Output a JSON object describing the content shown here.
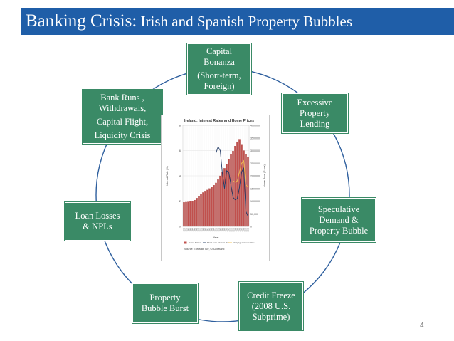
{
  "slide": {
    "title_main": "Banking Crisis:",
    "title_sub": " Irish and Spanish Property Bubbles",
    "page_number": "4"
  },
  "cycle": {
    "nodes": [
      {
        "id": "capital-bonanza",
        "lines": [
          "Capital",
          "Bonanza",
          "(Short-term,",
          "Foreign)"
        ]
      },
      {
        "id": "excessive-lending",
        "lines": [
          "Excessive",
          "Property",
          "Lending"
        ]
      },
      {
        "id": "speculative-demand",
        "lines": [
          "Speculative",
          "Demand &",
          "Property Bubble"
        ]
      },
      {
        "id": "credit-freeze",
        "lines": [
          "Credit Freeze",
          "(2008 U.S.",
          "Subprime)"
        ]
      },
      {
        "id": "bubble-burst",
        "lines": [
          "Property",
          "Bubble Burst"
        ]
      },
      {
        "id": "loan-losses",
        "lines": [
          "Loan Losses",
          "& NPLs"
        ]
      },
      {
        "id": "bank-runs",
        "lines": [
          "Bank Runs ,",
          "Withdrawals,",
          "Capital Flight,",
          "Liquidity Crisis"
        ]
      }
    ]
  },
  "chart_data": {
    "type": "bar",
    "title": "Ireland: Interest Rates and Home Prices",
    "xlabel": "Year",
    "ylabel_left": "Interest Rate (%)",
    "ylabel_right": "Home Price (Euros)",
    "source": "Source: Eurostat, IMF, CSO Ireland",
    "categories": [
      "1980",
      "1981",
      "1982",
      "1983",
      "1984",
      "1985",
      "1986",
      "1987",
      "1988",
      "1989",
      "1990",
      "1991",
      "1992",
      "1993",
      "1994",
      "1995",
      "1996",
      "1997",
      "1998",
      "1999",
      "2000",
      "2001",
      "2002",
      "2003",
      "2004",
      "2005",
      "2006",
      "2007",
      "2008",
      "2009",
      "2010"
    ],
    "y_left_ticks": [
      0,
      2,
      4,
      6,
      8
    ],
    "y_left_range": [
      0,
      8
    ],
    "y_right_ticks": [
      "0",
      "50,000",
      "100,000",
      "150,000",
      "200,000",
      "250,000",
      "300,000",
      "350,000",
      "400,000"
    ],
    "y_right_range": [
      0,
      400000
    ],
    "legend": [
      "Home Prices",
      "Short-term Interest Rate",
      "Mortgage Interest Rate"
    ],
    "series": [
      {
        "name": "Home Prices",
        "kind": "bar",
        "axis": "right",
        "color": "#c0504d",
        "values": [
          95000,
          96000,
          97000,
          99000,
          101000,
          104000,
          112000,
          120000,
          128000,
          134000,
          140000,
          144000,
          150000,
          156000,
          163000,
          172000,
          185000,
          200000,
          215000,
          230000,
          245000,
          265000,
          285000,
          298000,
          318000,
          335000,
          345000,
          325000,
          300000,
          285000,
          275000
        ]
      },
      {
        "name": "Short-term Interest Rate",
        "kind": "line",
        "axis": "left",
        "color": "#1f3864",
        "values": [
          null,
          null,
          null,
          null,
          null,
          null,
          null,
          null,
          null,
          null,
          null,
          null,
          null,
          null,
          null,
          5.8,
          6.3,
          6.0,
          4.2,
          3.0,
          4.4,
          4.3,
          3.3,
          2.3,
          2.1,
          2.2,
          3.1,
          4.3,
          4.6,
          1.2,
          0.8
        ]
      },
      {
        "name": "Mortgage Interest Rate",
        "kind": "line",
        "axis": "left",
        "color": "#f2c14e",
        "values": [
          null,
          null,
          null,
          null,
          null,
          null,
          null,
          null,
          null,
          null,
          null,
          null,
          null,
          null,
          null,
          null,
          null,
          null,
          null,
          null,
          null,
          null,
          null,
          3.6,
          3.5,
          3.6,
          4.3,
          5.0,
          5.2,
          3.3,
          3.1
        ]
      }
    ]
  },
  "colors": {
    "title_bar": "#1f5ea8",
    "node": "#3a8a66",
    "ring": "#2e5f9e"
  }
}
